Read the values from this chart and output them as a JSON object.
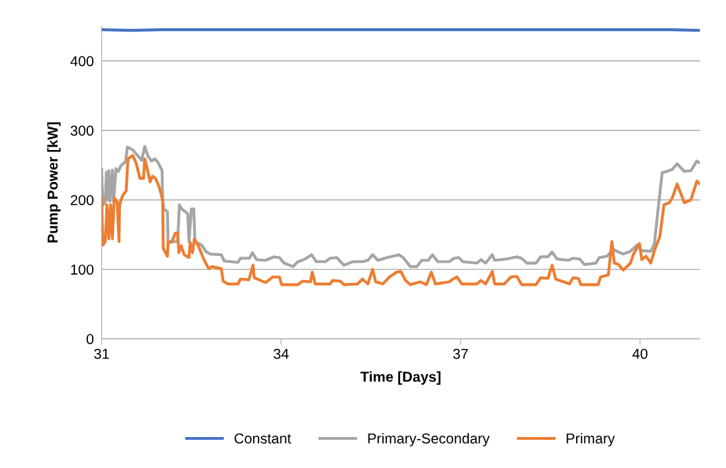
{
  "chart_data": {
    "type": "line",
    "xlabel": "Time [Days]",
    "ylabel": "Pump Power [kW]",
    "xlim": [
      31,
      41
    ],
    "xticks": [
      31,
      34,
      37,
      40
    ],
    "ylim": [
      0,
      450
    ],
    "yticks": [
      0,
      100,
      200,
      300,
      400
    ],
    "grid": "y",
    "legend": "bottom",
    "marker": "none",
    "line_style": "solid",
    "series": [
      {
        "name": "Constant",
        "color": "#4472c4",
        "x": [
          31,
          31.5,
          32,
          33,
          35,
          37,
          39,
          40.5,
          41
        ],
        "values": [
          445,
          444,
          445,
          445,
          445,
          445,
          445,
          445,
          444
        ]
      },
      {
        "name": "Primary-Secondary",
        "color": "#a5a5a5",
        "x": [
          31.0,
          31.02,
          31.06,
          31.08,
          31.1,
          31.12,
          31.14,
          31.18,
          31.2,
          31.24,
          31.28,
          31.32,
          31.4,
          31.43,
          31.52,
          31.6,
          31.67,
          31.72,
          31.77,
          31.83,
          31.89,
          31.94,
          32.01,
          32.02,
          32.04,
          32.1,
          32.11,
          32.27,
          32.3,
          32.34,
          32.44,
          32.46,
          32.5,
          32.54,
          32.56,
          32.67,
          32.75,
          32.82,
          33.0,
          33.05,
          33.28,
          33.32,
          33.47,
          33.52,
          33.59,
          33.74,
          33.88,
          33.97,
          34.05,
          34.2,
          34.28,
          34.38,
          34.51,
          34.59,
          34.74,
          34.82,
          34.93,
          35.05,
          35.2,
          35.36,
          35.45,
          35.53,
          35.62,
          35.77,
          35.97,
          36.04,
          36.16,
          36.27,
          36.35,
          36.46,
          36.53,
          36.62,
          36.81,
          36.89,
          36.97,
          37.04,
          37.27,
          37.34,
          37.42,
          37.53,
          37.57,
          37.77,
          37.94,
          38.02,
          38.11,
          38.26,
          38.34,
          38.46,
          38.53,
          38.61,
          38.8,
          38.88,
          38.99,
          39.07,
          39.26,
          39.32,
          39.45,
          39.55,
          39.61,
          39.72,
          39.84,
          39.95,
          40.03,
          40.18,
          40.24,
          40.31,
          40.37,
          40.45,
          40.54,
          40.62,
          40.74,
          40.85,
          40.95,
          41.0
        ],
        "values": [
          244,
          192,
          197,
          240,
          200,
          242,
          198,
          243,
          198,
          245,
          241,
          249,
          255,
          276,
          272,
          264,
          257,
          277,
          264,
          256,
          259,
          254,
          242,
          200,
          187,
          183,
          140,
          140,
          193,
          187,
          180,
          140,
          187,
          187,
          140,
          135,
          125,
          122,
          121,
          112,
          110,
          116,
          116,
          124,
          114,
          113,
          118,
          117,
          109,
          104,
          111,
          114,
          121,
          111,
          111,
          116,
          117,
          106,
          111,
          111,
          113,
          121,
          113,
          117,
          121,
          117,
          104,
          104,
          113,
          113,
          121,
          111,
          111,
          116,
          117,
          111,
          109,
          114,
          109,
          121,
          113,
          115,
          118,
          116,
          109,
          109,
          118,
          118,
          125,
          115,
          113,
          116,
          115,
          107,
          109,
          117,
          119,
          129,
          126,
          122,
          126,
          135,
          127,
          126,
          137,
          193,
          239,
          241,
          244,
          252,
          241,
          242,
          256,
          253
        ]
      },
      {
        "name": "Primary",
        "color": "#ed7d31",
        "x": [
          31.0,
          31.02,
          31.06,
          31.09,
          31.12,
          31.15,
          31.18,
          31.21,
          31.26,
          31.29,
          31.3,
          31.35,
          31.41,
          31.44,
          31.52,
          31.58,
          31.64,
          31.7,
          31.72,
          31.77,
          31.81,
          31.85,
          31.9,
          31.96,
          32.02,
          32.03,
          32.1,
          32.11,
          32.17,
          32.23,
          32.27,
          32.29,
          32.33,
          32.38,
          32.46,
          32.48,
          32.52,
          32.55,
          32.61,
          32.71,
          32.79,
          32.84,
          33.0,
          33.03,
          33.11,
          33.28,
          33.32,
          33.46,
          33.53,
          33.55,
          33.74,
          33.86,
          33.97,
          34.01,
          34.28,
          34.36,
          34.49,
          34.52,
          34.57,
          34.82,
          34.86,
          34.99,
          35.05,
          35.28,
          35.36,
          35.45,
          35.53,
          35.58,
          35.7,
          35.81,
          35.93,
          36.0,
          36.08,
          36.16,
          36.33,
          36.43,
          36.51,
          36.58,
          36.81,
          36.87,
          36.94,
          37.02,
          37.27,
          37.34,
          37.42,
          37.53,
          37.57,
          37.73,
          37.84,
          37.94,
          38.02,
          38.26,
          38.34,
          38.46,
          38.53,
          38.59,
          38.69,
          38.82,
          38.88,
          38.97,
          39.01,
          39.3,
          39.34,
          39.47,
          39.53,
          39.57,
          39.64,
          39.72,
          39.84,
          39.89,
          39.99,
          40.03,
          40.1,
          40.18,
          40.24,
          40.33,
          40.4,
          40.49,
          40.54,
          40.62,
          40.74,
          40.85,
          40.95,
          41.0
        ],
        "values": [
          203,
          135,
          140,
          193,
          144,
          193,
          144,
          203,
          197,
          140,
          193,
          206,
          213,
          259,
          264,
          252,
          231,
          231,
          259,
          242,
          226,
          234,
          231,
          219,
          200,
          130,
          119,
          139,
          139,
          152,
          152,
          124,
          134,
          121,
          117,
          139,
          124,
          144,
          135,
          114,
          101,
          104,
          101,
          83,
          79,
          79,
          86,
          85,
          106,
          88,
          81,
          89,
          89,
          78,
          78,
          83,
          82,
          96,
          79,
          79,
          84,
          83,
          78,
          79,
          86,
          79,
          100,
          82,
          79,
          89,
          96,
          97,
          84,
          78,
          82,
          78,
          96,
          79,
          82,
          86,
          89,
          79,
          79,
          84,
          79,
          97,
          79,
          79,
          89,
          90,
          78,
          78,
          88,
          87,
          106,
          86,
          83,
          79,
          88,
          87,
          78,
          78,
          89,
          92,
          140,
          109,
          107,
          99,
          109,
          122,
          137,
          114,
          119,
          109,
          127,
          147,
          193,
          196,
          203,
          223,
          196,
          200,
          227,
          223
        ]
      }
    ]
  }
}
